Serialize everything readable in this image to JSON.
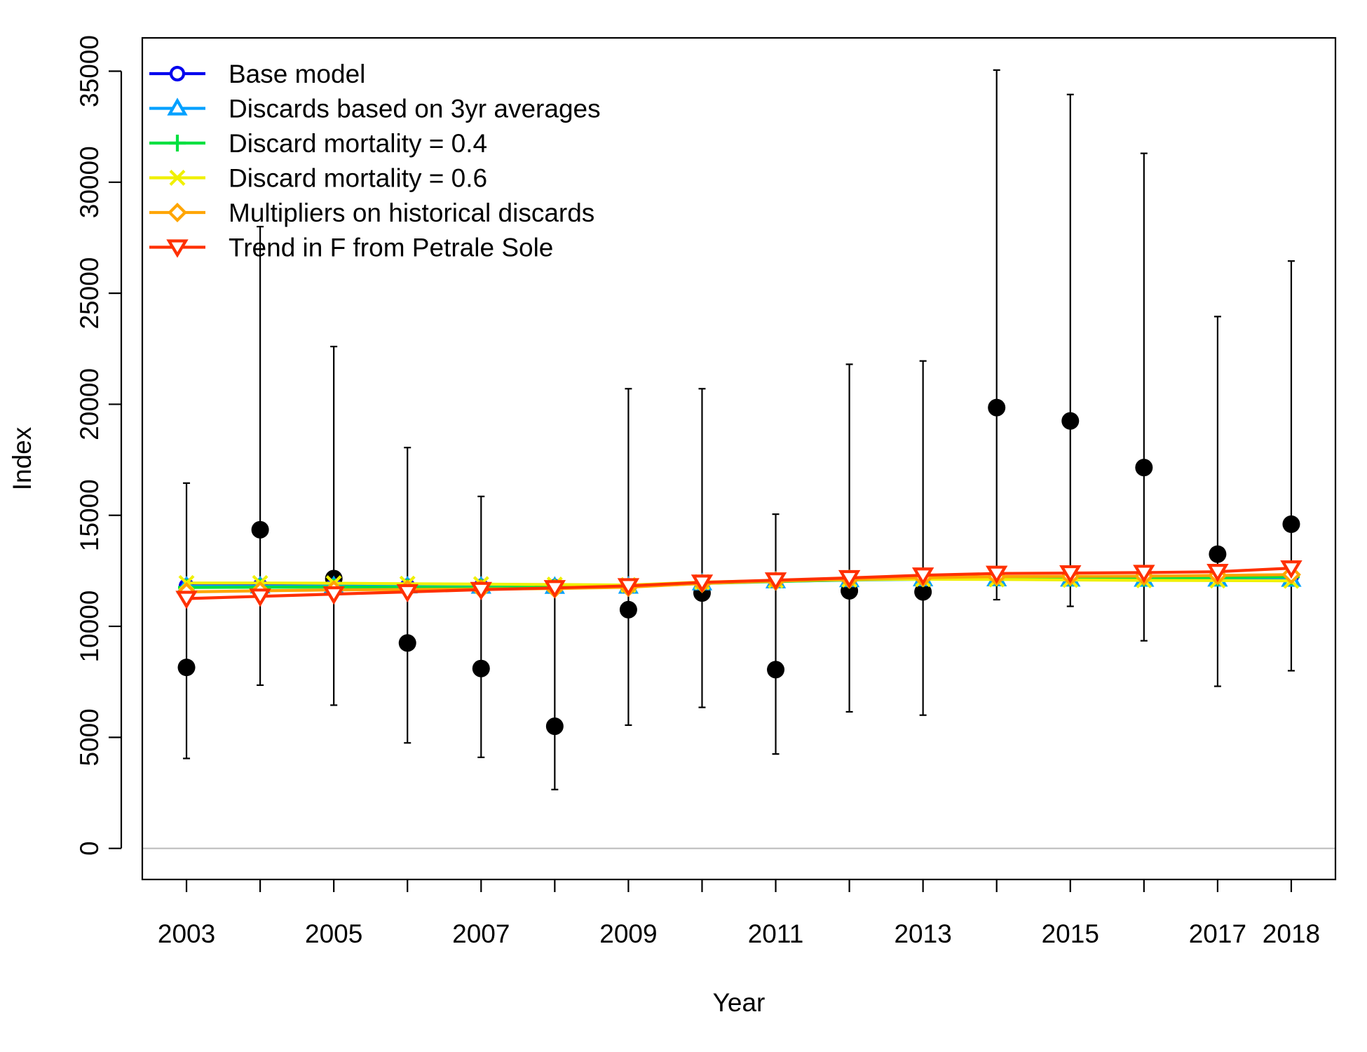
{
  "chart_data": {
    "type": "line",
    "xlabel": "Year",
    "ylabel": "Index",
    "xlim": [
      2002.4,
      2018.6
    ],
    "ylim": [
      -1400,
      36500
    ],
    "x_ticks": [
      2003,
      2004,
      2005,
      2006,
      2007,
      2008,
      2009,
      2010,
      2011,
      2012,
      2013,
      2014,
      2015,
      2016,
      2017,
      2018
    ],
    "x_tick_labels": [
      "2003",
      "2005",
      "2007",
      "2009",
      "2011",
      "2013",
      "2015",
      "2017",
      "2018"
    ],
    "y_ticks": [
      0,
      5000,
      10000,
      15000,
      20000,
      25000,
      30000,
      35000
    ],
    "y_tick_labels": [
      "0",
      "5000",
      "10000",
      "15000",
      "20000",
      "25000",
      "30000",
      "35000"
    ],
    "zero_line": true,
    "grid": false,
    "legend_position": "top-left",
    "observations": {
      "x": [
        2003,
        2004,
        2005,
        2006,
        2007,
        2008,
        2009,
        2010,
        2011,
        2012,
        2013,
        2014,
        2015,
        2016,
        2017,
        2018
      ],
      "y": [
        8150,
        14350,
        12150,
        9250,
        8100,
        5500,
        10750,
        11500,
        8050,
        11600,
        11550,
        19850,
        19250,
        17150,
        13250,
        14600
      ],
      "lower": [
        4050,
        7350,
        6450,
        4750,
        4100,
        2650,
        5550,
        6350,
        4250,
        6150,
        6000,
        11200,
        10900,
        9350,
        7300,
        8000
      ],
      "upper": [
        16450,
        28000,
        22600,
        18050,
        15850,
        11600,
        20700,
        20700,
        15050,
        21800,
        21950,
        35050,
        33950,
        31300,
        23950,
        26450
      ],
      "color": "#000000"
    },
    "series": [
      {
        "name": "Base model",
        "color": "#0000ee",
        "marker": "circle",
        "values": [
          11820,
          11820,
          11830,
          11810,
          11800,
          11790,
          11800,
          11950,
          12050,
          12120,
          12180,
          12200,
          12200,
          12200,
          12220,
          12250
        ]
      },
      {
        "name": "Discards based on 3yr averages",
        "color": "#00a0ff",
        "marker": "triangle-up",
        "values": [
          11800,
          11800,
          11810,
          11800,
          11790,
          11780,
          11790,
          11940,
          12030,
          12080,
          12120,
          12120,
          12110,
          12100,
          12110,
          12100
        ]
      },
      {
        "name": "Discard mortality = 0.4",
        "color": "#00e040",
        "marker": "plus",
        "values": [
          11750,
          11760,
          11770,
          11760,
          11750,
          11760,
          11780,
          11930,
          12020,
          12090,
          12150,
          12180,
          12180,
          12180,
          12200,
          12230
        ]
      },
      {
        "name": "Discard mortality = 0.6",
        "color": "#f0f000",
        "marker": "cross",
        "values": [
          11950,
          11950,
          11940,
          11920,
          11900,
          11880,
          11860,
          11990,
          12060,
          12100,
          12120,
          12110,
          12090,
          12070,
          12060,
          12050
        ]
      },
      {
        "name": "Multipliers on historical discards",
        "color": "#ffa500",
        "marker": "diamond",
        "values": [
          11550,
          11600,
          11640,
          11660,
          11680,
          11700,
          11760,
          11930,
          12040,
          12120,
          12190,
          12240,
          12250,
          12260,
          12290,
          12330
        ]
      },
      {
        "name": "Trend in F from Petrale Sole",
        "color": "#ff3000",
        "marker": "triangle-down",
        "values": [
          11250,
          11350,
          11450,
          11550,
          11650,
          11730,
          11820,
          11980,
          12080,
          12180,
          12300,
          12380,
          12400,
          12420,
          12460,
          12620
        ]
      }
    ]
  }
}
